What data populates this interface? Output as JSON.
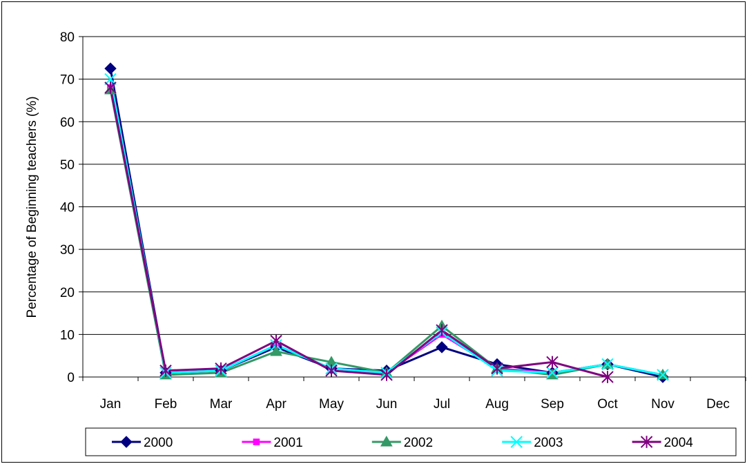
{
  "chart_data": {
    "type": "line",
    "title": "",
    "xlabel": "",
    "ylabel": "Percentage of  Beginning teachers (%)",
    "ylim": [
      0,
      80
    ],
    "yticks": [
      0,
      10,
      20,
      30,
      40,
      50,
      60,
      70,
      80
    ],
    "grid": "horizontal",
    "legend_position": "bottom",
    "categories": [
      "Jan",
      "Feb",
      "Mar",
      "Apr",
      "May",
      "Jun",
      "Jul",
      "Aug",
      "Sep",
      "Oct",
      "Nov",
      "Dec"
    ],
    "series": [
      {
        "name": "2000",
        "color": "#000080",
        "marker": "diamond",
        "values": [
          72.5,
          1.0,
          1.5,
          7.0,
          2.0,
          1.5,
          7.0,
          3.0,
          1.0,
          3.0,
          0.0,
          null
        ]
      },
      {
        "name": "2001",
        "color": "#ff00ff",
        "marker": "square",
        "values": [
          68.0,
          1.0,
          1.5,
          7.5,
          2.0,
          1.0,
          10.0,
          2.0,
          1.0,
          3.0,
          0.5,
          null
        ]
      },
      {
        "name": "2002",
        "color": "#339966",
        "marker": "triangle",
        "values": [
          67.5,
          0.5,
          1.0,
          6.0,
          3.5,
          1.0,
          12.0,
          2.0,
          0.5,
          3.0,
          0.5,
          null
        ]
      },
      {
        "name": "2003",
        "color": "#00ffff",
        "marker": "x",
        "values": [
          70.0,
          1.0,
          1.5,
          7.5,
          2.0,
          1.0,
          10.5,
          1.5,
          1.0,
          3.0,
          0.5,
          null
        ]
      },
      {
        "name": "2004",
        "color": "#800080",
        "marker": "star",
        "values": [
          68.0,
          1.5,
          2.0,
          8.5,
          1.5,
          0.5,
          11.0,
          2.0,
          3.5,
          0.0,
          null,
          null
        ]
      }
    ]
  }
}
